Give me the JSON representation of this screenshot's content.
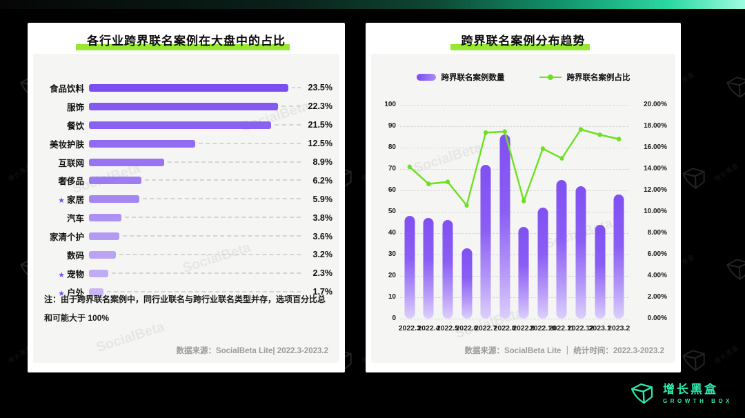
{
  "colors": {
    "background": "#000000",
    "highlight_green": "#97e831",
    "bar_purple": "#7c4ef2",
    "line_green": "#6fe021",
    "logo_teal": "#2ee9ae",
    "card_white": "#ffffff",
    "panel_gray": "#f5f5f4"
  },
  "watermark": {
    "card_text": "SocialBeta",
    "bg_text": "增长黑盒"
  },
  "left_chart": {
    "note": "注：由于跨界联名案例中，同行业联名与跨行业联名类型并存，选项百分比总和可能大于 100%",
    "source": "数据来源：SocialBeta Lite| 2022.3-2023.2"
  },
  "right_chart": {
    "source": "数据来源：SocialBeta Lite ｜ 统计时间：2022.3-2023.2"
  },
  "logo": {
    "name_cn": "增长黑盒",
    "name_en": "GROWTH BOX"
  },
  "chart_data": [
    {
      "type": "bar",
      "orientation": "horizontal",
      "title": "各行业跨界联名案例在大盘中的占比",
      "categories": [
        "食品饮料",
        "服饰",
        "餐饮",
        "美妆护肤",
        "互联网",
        "奢侈品",
        "家居",
        "汽车",
        "家清个护",
        "数码",
        "宠物",
        "户外"
      ],
      "values": [
        23.5,
        22.3,
        21.5,
        12.5,
        8.9,
        6.2,
        5.9,
        3.8,
        3.6,
        3.2,
        2.3,
        1.7
      ],
      "value_labels": [
        "23.5%",
        "22.3%",
        "21.5%",
        "12.5%",
        "8.9%",
        "6.2%",
        "5.9%",
        "3.8%",
        "3.6%",
        "3.2%",
        "2.3%",
        "1.7%"
      ],
      "starred": [
        "家居",
        "宠物",
        "户外"
      ],
      "xlim": [
        0,
        23.5
      ],
      "grid": false,
      "bar_style": "purple, fading lighter toward bottom rows, dashed leader lines to value labels"
    },
    {
      "type": "bar+line",
      "title": "跨界联名案例分布趋势",
      "categories": [
        "2022.3",
        "2022.4",
        "2022.5",
        "2022.6",
        "2022.7",
        "2022.8",
        "2022.9",
        "2022.10",
        "2022.11",
        "2022.12",
        "2023.1",
        "2023.2"
      ],
      "series": [
        {
          "name": "跨界联名案例数量",
          "type": "bar",
          "axis": "left",
          "values": [
            48,
            47,
            46,
            33,
            72,
            86,
            43,
            52,
            65,
            62,
            44,
            58
          ]
        },
        {
          "name": "跨界联名案例占比",
          "type": "line",
          "axis": "right",
          "values": [
            14.2,
            12.6,
            12.8,
            10.6,
            17.4,
            17.5,
            11.0,
            15.9,
            15.0,
            17.7,
            17.2,
            16.8
          ]
        }
      ],
      "left_axis": {
        "min": 0,
        "max": 100,
        "step": 10,
        "ticks": [
          "100",
          "90",
          "80",
          "70",
          "60",
          "50",
          "40",
          "30",
          "20",
          "10",
          "0"
        ]
      },
      "right_axis": {
        "min": 0,
        "max": 20,
        "step": 2,
        "ticks": [
          "20.00%",
          "18.00%",
          "16.00%",
          "14.00%",
          "12.00%",
          "10.00%",
          "8.00%",
          "6.00%",
          "4.00%",
          "2.00%",
          "0.00%"
        ]
      },
      "grid": "horizontal dashed",
      "legend_position": "top center"
    }
  ]
}
